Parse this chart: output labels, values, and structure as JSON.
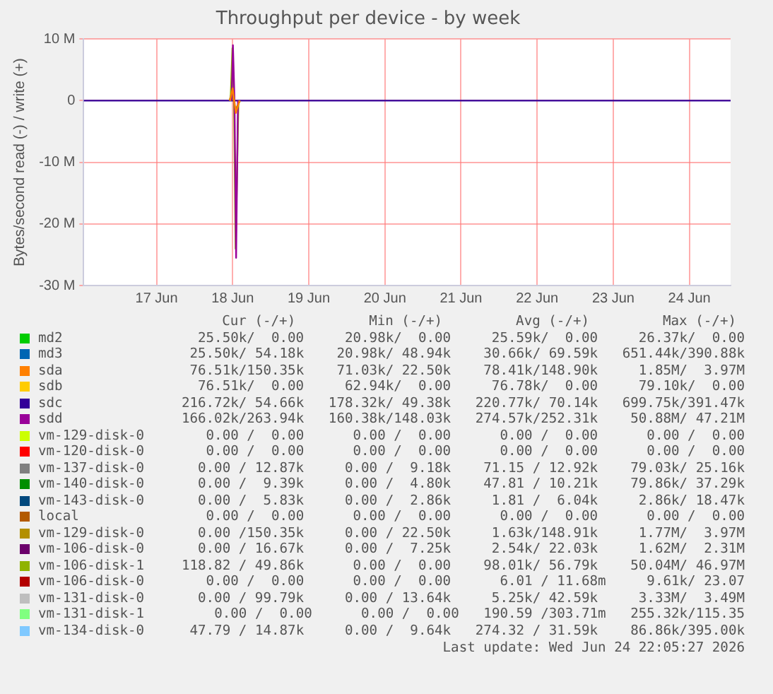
{
  "chart_data": {
    "type": "line",
    "title": "Throughput per device - by week",
    "ylabel": "Bytes/second read (-) / write (+)",
    "xlim": [
      "2026-06-16T01:00",
      "2026-06-24T13:00"
    ],
    "xticks": [
      {
        "value": "2026-06-17",
        "label": "17 Jun"
      },
      {
        "value": "2026-06-18",
        "label": "18 Jun"
      },
      {
        "value": "2026-06-19",
        "label": "19 Jun"
      },
      {
        "value": "2026-06-20",
        "label": "20 Jun"
      },
      {
        "value": "2026-06-21",
        "label": "21 Jun"
      },
      {
        "value": "2026-06-22",
        "label": "22 Jun"
      },
      {
        "value": "2026-06-23",
        "label": "23 Jun"
      },
      {
        "value": "2026-06-24",
        "label": "24 Jun"
      }
    ],
    "ylim": [
      -30,
      10
    ],
    "yticks": [
      {
        "value": -30,
        "label": "-30 M"
      },
      {
        "value": -20,
        "label": "-20 M"
      },
      {
        "value": -10,
        "label": "-10 M"
      },
      0,
      {
        "value": 10,
        "label": "10 M"
      }
    ],
    "grid": true,
    "legend": "bottom",
    "marker": "none",
    "line_style": "solid",
    "series": [
      {
        "name": "md2",
        "color": "#00cc00",
        "values": [
          null,
          null,
          null,
          null,
          null,
          null
        ]
      },
      {
        "name": "md3",
        "color": "#0066b3",
        "values": [
          null,
          null,
          null,
          null,
          null,
          null
        ]
      },
      {
        "name": "sda",
        "color": "#ff8000",
        "x": [
          "2026-06-17T23:10",
          "2026-06-18T00:00",
          "2026-06-18T00:30",
          "2026-06-18T01:00",
          "2026-06-18T02:10"
        ],
        "values": [
          0,
          2,
          0,
          -2,
          0
        ]
      },
      {
        "name": "sdb",
        "color": "#ffcc00",
        "values": [
          null,
          null,
          null,
          null,
          null,
          null
        ]
      },
      {
        "name": "sdc",
        "color": "#330099",
        "x": [
          "2026-06-16T01:00",
          "2026-06-24T13:00"
        ],
        "values": [
          0,
          0
        ]
      },
      {
        "name": "sdd",
        "color": "#990099",
        "x": [
          "2026-06-17T23:40",
          "2026-06-18T00:05",
          "2026-06-18T00:35",
          "2026-06-18T01:05",
          "2026-06-18T01:40"
        ],
        "values": [
          0,
          9,
          0,
          -25.5,
          0
        ]
      },
      {
        "name": "vm-129-disk-0",
        "color": "#ccff00",
        "values": [
          null,
          null,
          null,
          null,
          null,
          null
        ]
      },
      {
        "name": "vm-120-disk-0",
        "color": "#ff0000",
        "values": [
          null,
          null,
          null,
          null,
          null,
          null
        ]
      },
      {
        "name": "vm-137-disk-0",
        "color": "#808080",
        "values": [
          null,
          null,
          null,
          null,
          null,
          null
        ]
      },
      {
        "name": "vm-140-disk-0",
        "color": "#008f00",
        "values": [
          null,
          null,
          null,
          null,
          null,
          null
        ]
      },
      {
        "name": "vm-143-disk-0",
        "color": "#00487d",
        "values": [
          null,
          null,
          null,
          null,
          null,
          null
        ]
      },
      {
        "name": "local",
        "color": "#b35a00",
        "values": [
          null,
          null,
          null,
          null,
          null,
          null
        ]
      },
      {
        "name": "vm-129-disk-0",
        "color": "#b38f00",
        "x": [
          "2026-06-17T23:00",
          "2026-06-17T23:50",
          "2026-06-18T00:20",
          "2026-06-18T00:50",
          "2026-06-18T02:20"
        ],
        "values": [
          0,
          1.5,
          0,
          -1.5,
          0
        ]
      },
      {
        "name": "vm-106-disk-0",
        "color": "#6b006b",
        "values": [
          null,
          null,
          null,
          null,
          null,
          null
        ]
      },
      {
        "name": "vm-106-disk-1",
        "color": "#8fb300",
        "x": [
          "2026-06-17T23:20",
          "2026-06-17T23:55",
          "2026-06-18T00:25",
          "2026-06-18T00:55",
          "2026-06-18T01:50"
        ],
        "values": [
          0,
          8.5,
          0,
          -24,
          0
        ]
      },
      {
        "name": "vm-106-disk-0",
        "color": "#b30000",
        "values": [
          null,
          null,
          null,
          null,
          null,
          null
        ]
      },
      {
        "name": "vm-131-disk-0",
        "color": "#bebebe",
        "values": [
          null,
          null,
          null,
          null,
          null,
          null
        ]
      },
      {
        "name": "vm-131-disk-1",
        "color": "#80ff80",
        "values": [
          null,
          null,
          null,
          null,
          null,
          null
        ]
      },
      {
        "name": "vm-134-disk-0",
        "color": "#80c9ff",
        "values": [
          null,
          null,
          null,
          null,
          null,
          null
        ]
      }
    ],
    "annotations": [
      "Cur (-/+)         Min (-/+)         Avg (-/+)         Max (-/+)",
      "25.50k/  0.00     20.98k/  0.00     25.59k/  0.00     26.37k/  0.00",
      "25.50k/ 54.18k    20.98k/ 48.94k    30.66k/ 69.59k   651.44k/390.88k",
      "76.51k/150.35k    71.03k/ 22.50k    78.41k/148.90k     1.85M/  3.97M",
      "76.51k/  0.00     62.94k/  0.00     76.78k/  0.00     79.10k/  0.00",
      "216.72k/ 54.66k   178.32k/ 49.38k   220.77k/ 70.14k   699.75k/391.47k",
      "166.02k/263.94k   160.38k/148.03k   274.57k/252.31k    50.88M/ 47.21M",
      "0.00 /  0.00      0.00 /  0.00      0.00 /  0.00      0.00 /  0.00",
      "0.00 /  0.00      0.00 /  0.00      0.00 /  0.00      0.00 /  0.00",
      "0.00 / 12.87k     0.00 /  9.18k    71.15 / 12.92k    79.03k/ 25.16k",
      "0.00 /  9.39k     0.00 /  4.80k    47.81 / 10.21k    79.86k/ 37.29k",
      "0.00 /  5.83k     0.00 /  2.86k     1.81 /  6.04k     2.86k/ 18.47k",
      "0.00 /  0.00      0.00 /  0.00      0.00 /  0.00      0.00 /  0.00",
      "0.00 /150.35k     0.00 / 22.50k     1.63k/148.91k     1.77M/  3.97M",
      "0.00 / 16.67k     0.00 /  7.25k     2.54k/ 22.03k     1.62M/  2.31M",
      "118.82 / 49.86k      0.00 /  0.00    98.01k/ 56.79k    50.04M/ 46.97M",
      "0.00 /  0.00      0.00 /  0.00      6.01 / 11.68m     9.61k/ 23.07",
      "0.00 / 99.79k     0.00 / 13.64k     5.25k/ 42.59k     3.33M/  3.49M",
      "0.00 /  0.00      0.00 /  0.00   190.59 /303.71m   255.32k/115.35",
      "47.79 / 14.87k     0.00 /  9.64k   274.32 / 31.59k    86.86k/395.00k",
      "Last update: Wed Jun 24 22:05:27 2026"
    ]
  }
}
